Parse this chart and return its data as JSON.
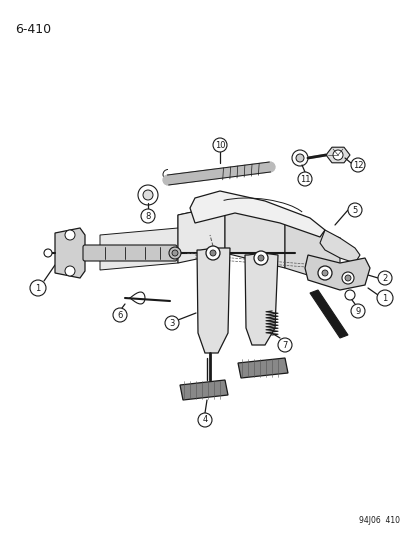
{
  "page_label": "6-410",
  "footer": "94J06  410",
  "background": "#ffffff",
  "line_color": "#1a1a1a",
  "figsize": [
    4.14,
    5.33
  ],
  "dpi": 100,
  "xlim": [
    0,
    414
  ],
  "ylim": [
    0,
    533
  ]
}
